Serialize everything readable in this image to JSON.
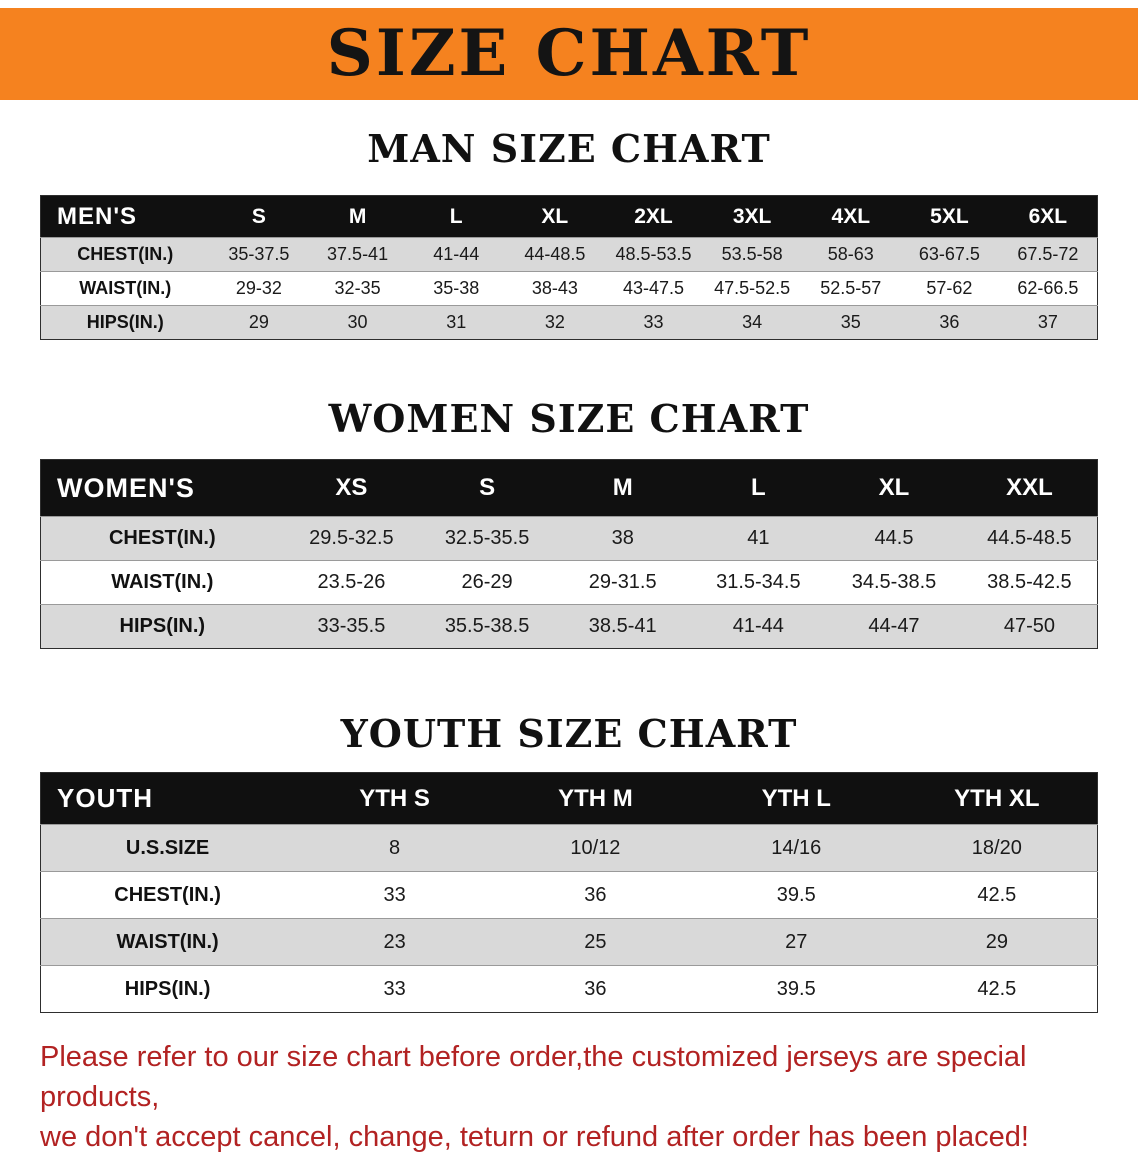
{
  "banner": {
    "title": "SIZE CHART"
  },
  "sections": [
    {
      "heading": "MAN SIZE CHART",
      "table": {
        "header": [
          "MEN'S",
          "S",
          "M",
          "L",
          "XL",
          "2XL",
          "3XL",
          "4XL",
          "5XL",
          "6XL"
        ],
        "rows": [
          [
            "CHEST(IN.)",
            "35-37.5",
            "37.5-41",
            "41-44",
            "44-48.5",
            "48.5-53.5",
            "53.5-58",
            "58-63",
            "63-67.5",
            "67.5-72"
          ],
          [
            "WAIST(IN.)",
            "29-32",
            "32-35",
            "35-38",
            "38-43",
            "43-47.5",
            "47.5-52.5",
            "52.5-57",
            "57-62",
            "62-66.5"
          ],
          [
            "HIPS(IN.)",
            "29",
            "30",
            "31",
            "32",
            "33",
            "34",
            "35",
            "36",
            "37"
          ]
        ]
      }
    },
    {
      "heading": "WOMEN SIZE CHART",
      "table": {
        "header": [
          "WOMEN'S",
          "XS",
          "S",
          "M",
          "L",
          "XL",
          "XXL"
        ],
        "rows": [
          [
            "CHEST(IN.)",
            "29.5-32.5",
            "32.5-35.5",
            "38",
            "41",
            "44.5",
            "44.5-48.5"
          ],
          [
            "WAIST(IN.)",
            "23.5-26",
            "26-29",
            "29-31.5",
            "31.5-34.5",
            "34.5-38.5",
            "38.5-42.5"
          ],
          [
            "HIPS(IN.)",
            "33-35.5",
            "35.5-38.5",
            "38.5-41",
            "41-44",
            "44-47",
            "47-50"
          ]
        ]
      }
    },
    {
      "heading": "YOUTH SIZE CHART",
      "table": {
        "header": [
          "YOUTH",
          "YTH S",
          "YTH M",
          "YTH L",
          "YTH XL"
        ],
        "rows": [
          [
            "U.S.SIZE",
            "8",
            "10/12",
            "14/16",
            "18/20"
          ],
          [
            "CHEST(IN.)",
            "33",
            "36",
            "39.5",
            "42.5"
          ],
          [
            "WAIST(IN.)",
            "23",
            "25",
            "27",
            "29"
          ],
          [
            "HIPS(IN.)",
            "33",
            "36",
            "39.5",
            "42.5"
          ]
        ]
      }
    }
  ],
  "disclaimer": {
    "line1": "Please refer to our size chart before order,the customized jerseys are special products,",
    "line2": "we don't accept cancel, change, teturn or refund after order has been placed!"
  },
  "colors": {
    "banner_orange": "#F5821F",
    "header_black": "#101010",
    "row_gray": "#D9D9D9",
    "disclaimer_red": "#B22222"
  }
}
